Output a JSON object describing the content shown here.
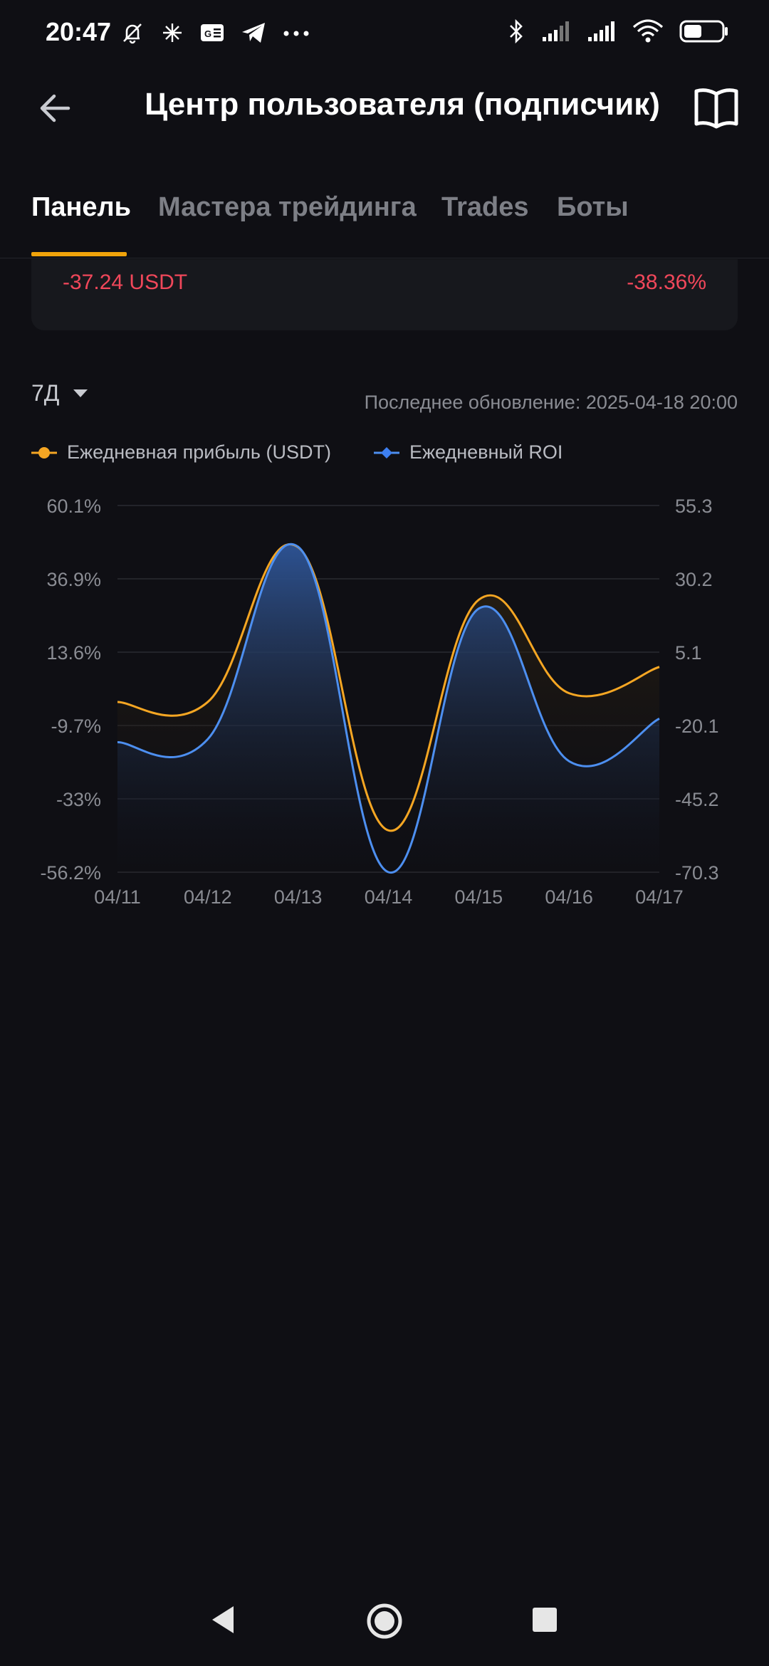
{
  "status_bar": {
    "time": "20:47",
    "left_icons": [
      "mute-bell-icon",
      "sparkle-icon",
      "news-icon",
      "telegram-icon",
      "more-icon"
    ],
    "right_icons": [
      "bluetooth-icon",
      "signal-icon",
      "signal-icon",
      "wifi-icon",
      "battery-icon"
    ]
  },
  "app_bar": {
    "title": "Центр пользователя (подписчик)"
  },
  "tabs": [
    {
      "label": "Панель",
      "active": true
    },
    {
      "label": "Мастера трейдинга",
      "active": false
    },
    {
      "label": "Trades",
      "active": false
    },
    {
      "label": "Боты",
      "active": false
    }
  ],
  "summary": {
    "pnl_value": "-37.24 USDT",
    "roi_value": "-38.36%",
    "negative_color": "#f0475a"
  },
  "period": {
    "selected": "7Д"
  },
  "last_update": "Последнее обновление: 2025-04-18 20:00",
  "colors": {
    "accent": "#f0a30a",
    "profit_series": "#f5a623",
    "roi_series": "#4d8ff0",
    "background": "#0f0f14"
  },
  "chart_data": {
    "type": "line",
    "x": [
      "04/11",
      "04/12",
      "04/13",
      "04/14",
      "04/15",
      "04/16",
      "04/17"
    ],
    "series": [
      {
        "name": "Ежедневная прибыль (USDT)",
        "axis": "right",
        "values": [
          -12,
          -12,
          41,
          -56,
          23,
          -9,
          0
        ]
      },
      {
        "name": "Ежедневный ROI",
        "axis": "left",
        "values": [
          -15,
          -14,
          47,
          -56.2,
          27.4,
          -21,
          -7.5
        ]
      }
    ],
    "left_axis": {
      "ticks": [
        "60.1%",
        "36.9%",
        "13.6%",
        "-9.7%",
        "-33%",
        "-56.2%"
      ],
      "range": [
        -56.2,
        60.1
      ]
    },
    "right_axis": {
      "ticks": [
        "55.3",
        "30.2",
        "5.1",
        "-20.1",
        "-45.2",
        "-70.3"
      ],
      "range": [
        -70.3,
        55.3
      ]
    },
    "grid": true,
    "legend": "top-left"
  },
  "nav_bar": {
    "buttons": [
      "back-nav-icon",
      "home-nav-icon",
      "recents-nav-icon"
    ]
  }
}
